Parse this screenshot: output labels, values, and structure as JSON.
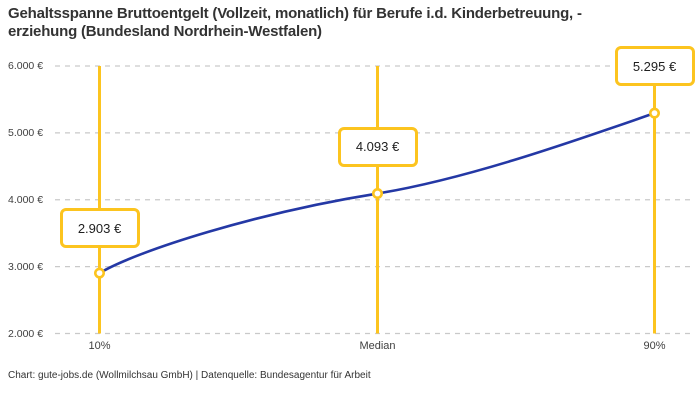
{
  "title": {
    "lines": [
      "Gehaltsspanne Bruttoentgelt (Vollzeit, monatlich) für Berufe i.d. Kinderbetreuung, -",
      "erziehung (Bundesland Nordrhein-Westfalen)"
    ]
  },
  "footer": {
    "text": "Chart: gute-jobs.de (Wollmilchsau GmbH) | Datenquelle: Bundesagentur für Arbeit"
  },
  "colors": {
    "accent_yellow": "#fcc41f",
    "line_blue": "#2438a5",
    "grid_gray": "#c9c9c9"
  },
  "chart_data": {
    "type": "line",
    "title": "Gehaltsspanne Bruttoentgelt (Vollzeit, monatlich) für Berufe i.d. Kinderbetreuung, -erziehung (Bundesland Nordrhein-Westfalen)",
    "categories": [
      "10%",
      "Median",
      "90%"
    ],
    "values": [
      2903,
      4093,
      5295
    ],
    "value_labels": [
      "2.903 €",
      "4.093 €",
      "5.295 €"
    ],
    "y_tick_labels": [
      "6.000 €",
      "5.000 €",
      "4.000 €",
      "3.000 €",
      "2.000 €"
    ],
    "y_tick_values": [
      6000,
      5000,
      4000,
      3000,
      2000
    ],
    "ylim": [
      2000,
      6000
    ],
    "xlabel": "",
    "ylabel": "",
    "grid": "horizontal-dashed",
    "legend": "none",
    "marker_style": "open-circle",
    "annotation_lines": "vertical at each category"
  }
}
